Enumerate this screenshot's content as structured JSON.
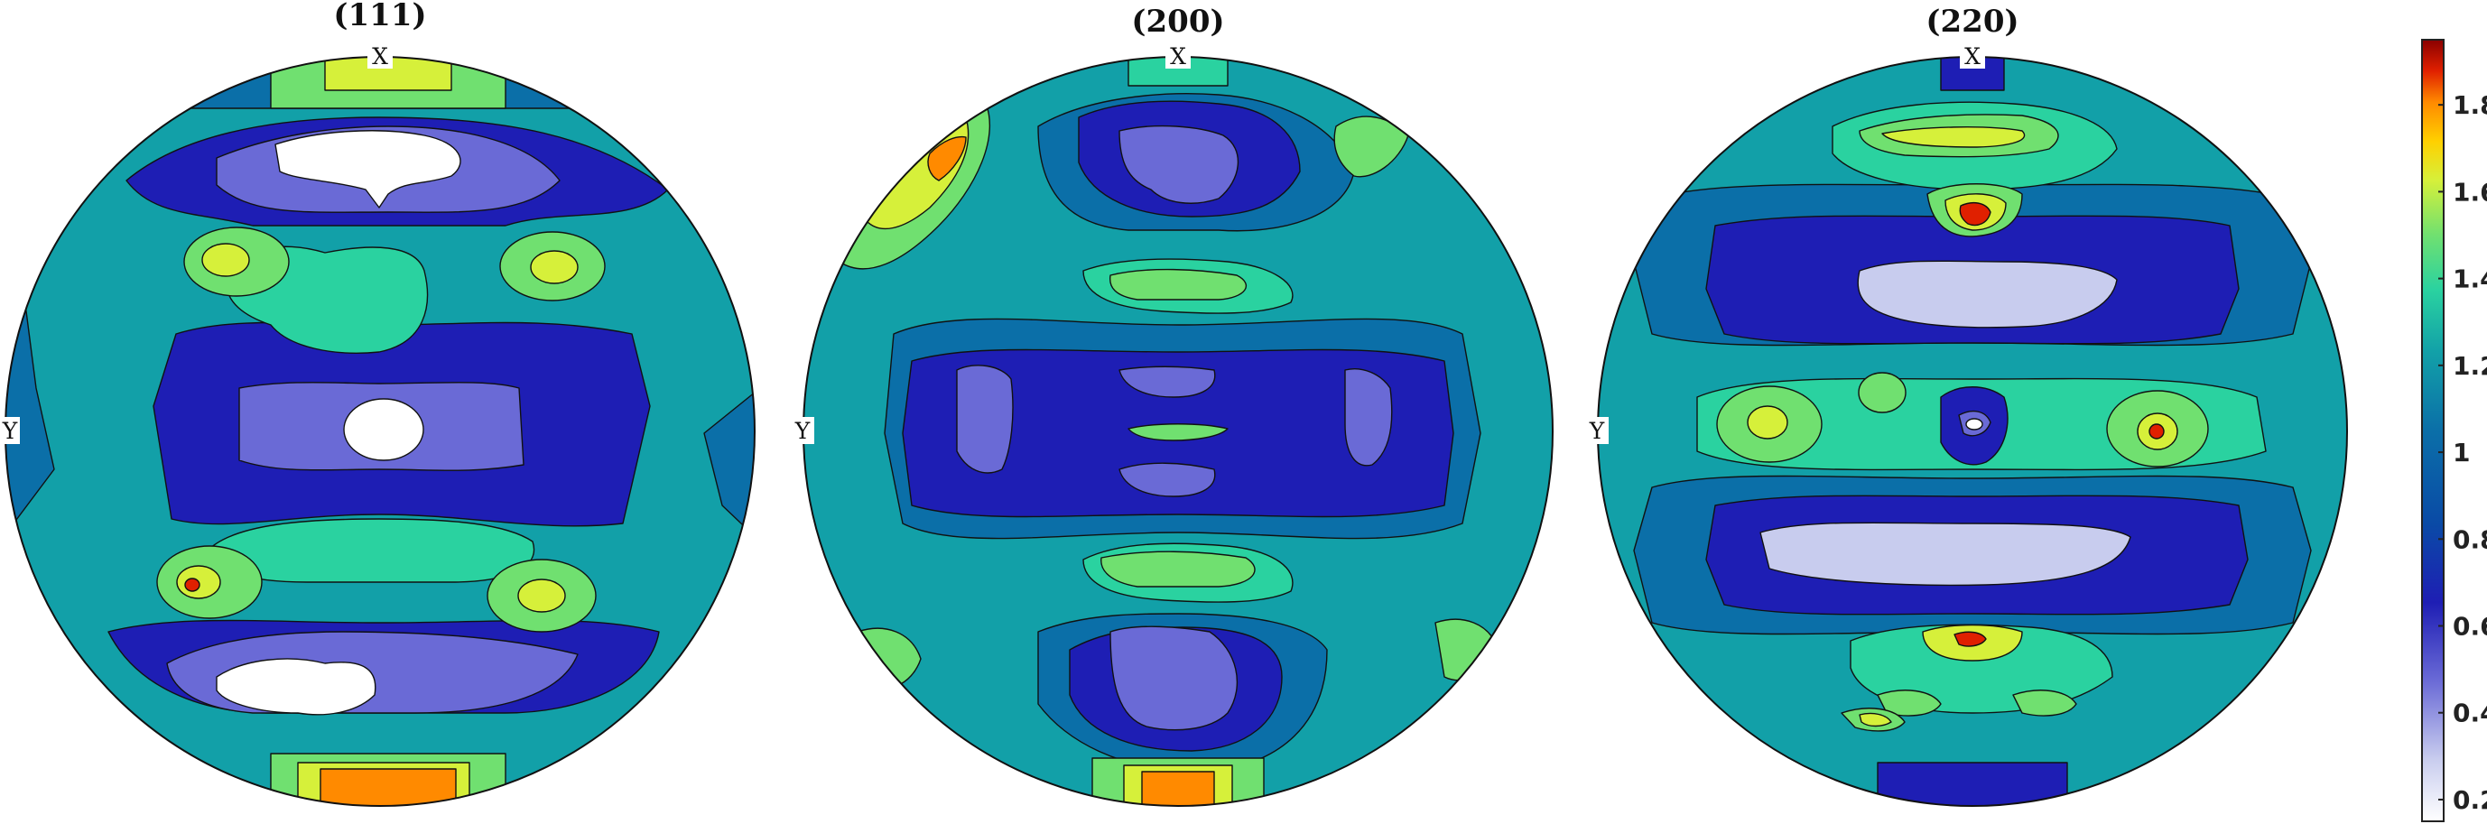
{
  "figure": {
    "panels": [
      {
        "id": "p111",
        "title": "(111)",
        "x_label": "X",
        "y_label": "Y"
      },
      {
        "id": "p200",
        "title": "(200)",
        "x_label": "X",
        "y_label": "Y"
      },
      {
        "id": "p220",
        "title": "(220)",
        "x_label": "X",
        "y_label": "Y"
      }
    ],
    "colorbar": {
      "ticks": [
        "0.2",
        "0.4",
        "0.6",
        "0.8",
        "1",
        "1.2",
        "1.4",
        "1.6",
        "1.8"
      ],
      "range": [
        0.15,
        1.95
      ],
      "colors": [
        "#ffffff",
        "#c8ccee",
        "#6a6ad6",
        "#1e1eb4",
        "#0a4aa6",
        "#0b6fa8",
        "#12a0a8",
        "#2ad2a0",
        "#70e070",
        "#d6f03a",
        "#ffd000",
        "#ff8a00",
        "#e02000",
        "#8a0000"
      ]
    },
    "contour_levels": [
      0.2,
      0.4,
      0.6,
      0.8,
      1.0,
      1.2,
      1.4,
      1.6,
      1.8
    ]
  }
}
